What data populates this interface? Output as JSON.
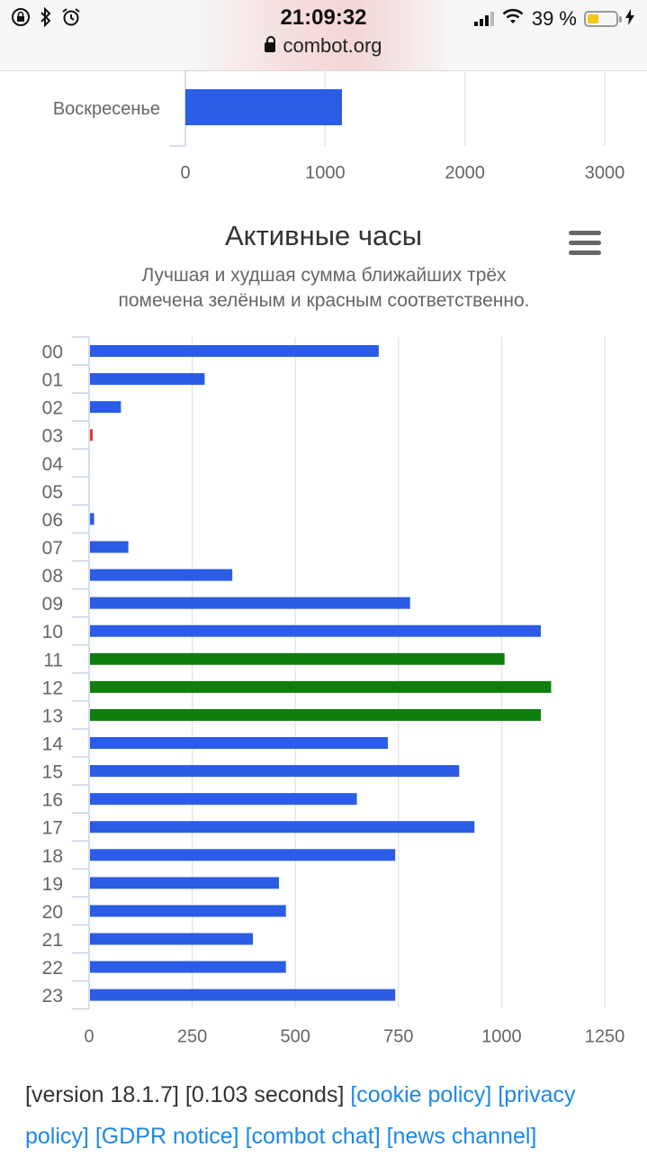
{
  "status_bar": {
    "time": "21:09:32",
    "url": "combot.org",
    "battery_percent": "39 %",
    "battery_level": 0.39
  },
  "top_chart": {
    "category": "Воскресенье",
    "value": 1120,
    "x_ticks": [
      "0",
      "1000",
      "2000",
      "3000"
    ],
    "xlim": [
      0,
      3000
    ],
    "bar_color": "#2b5ce6"
  },
  "chart_data": {
    "type": "bar",
    "orientation": "horizontal",
    "title": "Активные часы",
    "subtitle": "Лучшая и худшая сумма ближайших трёх помечена зелёным и красным соответственно.",
    "subtitle_lines": [
      "Лучшая и худшая сумма ближайших трёх",
      "помечена зелёным и красным соответственно."
    ],
    "categories": [
      "00",
      "01",
      "02",
      "03",
      "04",
      "05",
      "06",
      "07",
      "08",
      "09",
      "10",
      "11",
      "12",
      "13",
      "14",
      "15",
      "16",
      "17",
      "18",
      "19",
      "20",
      "21",
      "22",
      "23"
    ],
    "values": [
      700,
      278,
      75,
      4,
      0,
      0,
      10,
      93,
      345,
      776,
      1093,
      1005,
      1118,
      1093,
      722,
      895,
      647,
      932,
      740,
      458,
      475,
      395,
      475,
      740
    ],
    "colors": [
      "#2b5ce6",
      "#2b5ce6",
      "#2b5ce6",
      "#e53935",
      "#2b5ce6",
      "#2b5ce6",
      "#2b5ce6",
      "#2b5ce6",
      "#2b5ce6",
      "#2b5ce6",
      "#2b5ce6",
      "#0d7f0d",
      "#0d7f0d",
      "#0d7f0d",
      "#2b5ce6",
      "#2b5ce6",
      "#2b5ce6",
      "#2b5ce6",
      "#2b5ce6",
      "#2b5ce6",
      "#2b5ce6",
      "#2b5ce6",
      "#2b5ce6",
      "#2b5ce6"
    ],
    "x_ticks": [
      "0",
      "250",
      "500",
      "750",
      "1000",
      "1250"
    ],
    "xlim": [
      0,
      1250
    ],
    "grid": true,
    "legend": "none"
  },
  "menu_icon": "hamburger-menu-icon",
  "footer": {
    "version": "[version 18.1.7]",
    "timing": "[0.103 seconds]",
    "links": [
      "[cookie policy]",
      "[privacy policy]",
      "[GDPR notice]",
      "[combot chat]",
      "[news channel]"
    ]
  }
}
